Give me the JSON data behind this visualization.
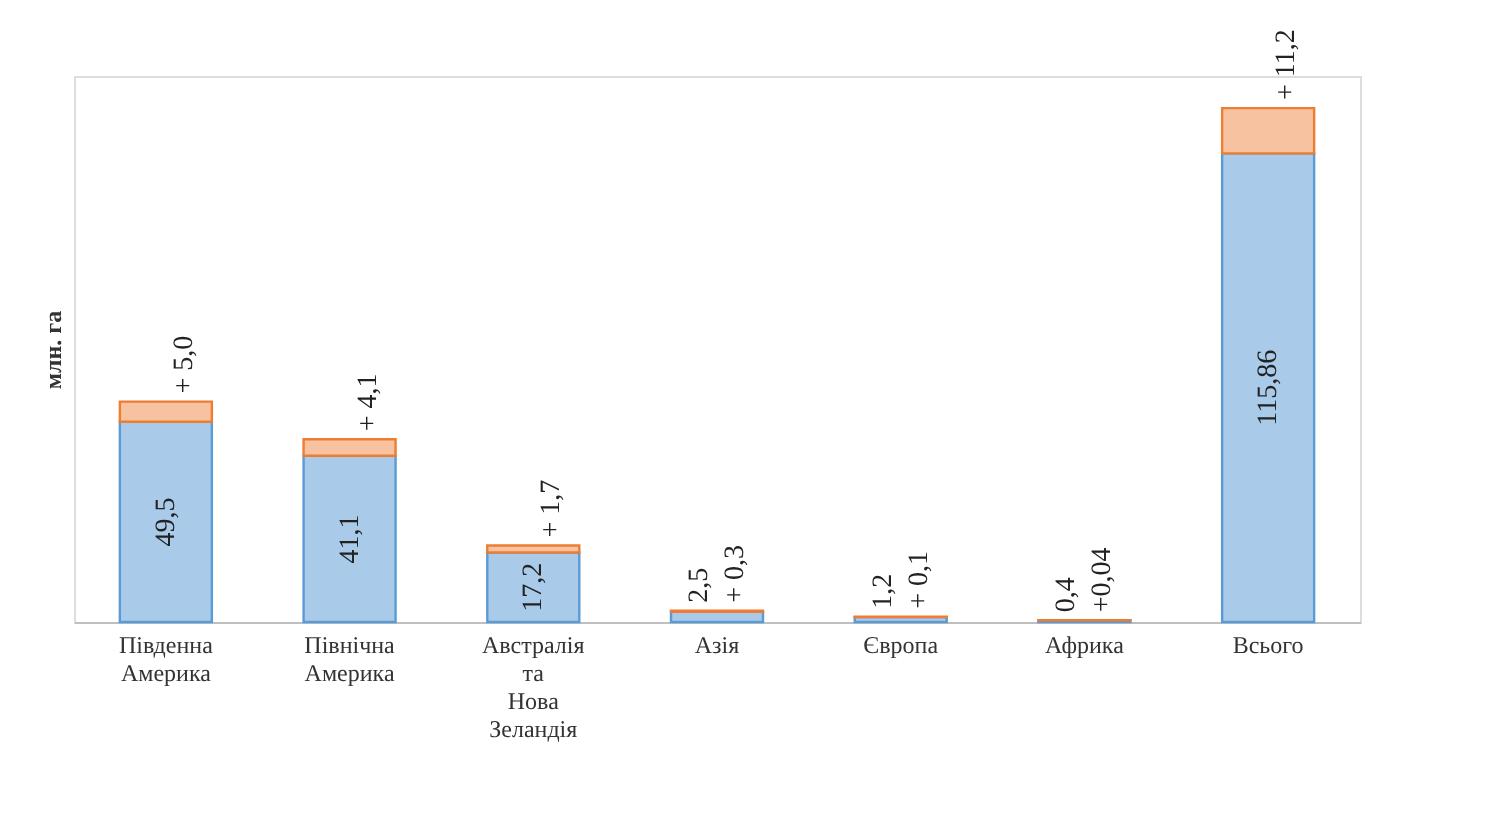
{
  "chart_data": {
    "type": "bar",
    "stacked": true,
    "ylabel": "млн. га",
    "legend": false,
    "tick_labels": "x",
    "ylim": [
      0,
      135
    ],
    "categories": [
      "Південна Америка",
      "Північна Америка",
      "Австралія та Нова Зеландія",
      "Азія",
      "Європа",
      "Африка",
      "Всього"
    ],
    "series": [
      {
        "color": "#a9cbe9",
        "values": [
          49.5,
          41.1,
          17.2,
          2.5,
          1.2,
          0.4,
          115.86
        ],
        "value_labels": [
          "49,5",
          "41,1",
          "17,2",
          "2,5",
          "1,2",
          "0,4",
          "115,86"
        ]
      },
      {
        "color": "#f7c2a0",
        "values": [
          5.0,
          4.1,
          1.7,
          0.3,
          0.1,
          0.04,
          11.2
        ],
        "value_labels": [
          "+ 5,0",
          "+ 4,1",
          "+ 1,7",
          "+ 0,3",
          "+ 0,1",
          "+0,04",
          "+ 11,2"
        ]
      }
    ]
  }
}
